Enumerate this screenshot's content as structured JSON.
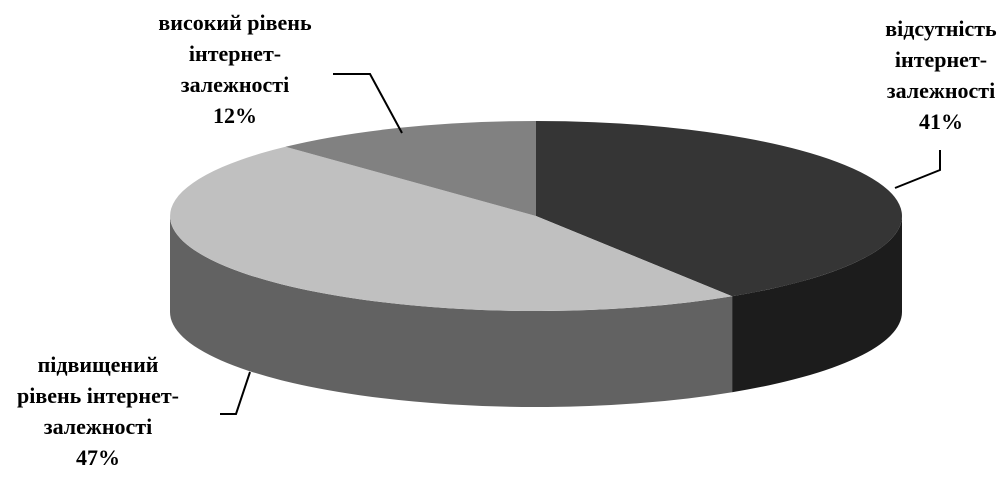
{
  "chart_data": {
    "type": "pie",
    "title": "",
    "three_d": true,
    "legend": "none",
    "slices": [
      {
        "key": "absent",
        "label_lines": [
          "відсутність",
          "інтернет-",
          "залежності"
        ],
        "percent_label": "41%",
        "value": 41,
        "top_color": "#353535",
        "side_color": "#1c1c1c"
      },
      {
        "key": "elevated",
        "label_lines": [
          "підвищений",
          "рівень інтернет-",
          "залежності"
        ],
        "percent_label": "47%",
        "value": 47,
        "top_color": "#c0c0c0",
        "side_color": "#626262"
      },
      {
        "key": "high",
        "label_lines": [
          "високий рівень",
          "інтернет-",
          "залежності"
        ],
        "percent_label": "12%",
        "value": 12,
        "top_color": "#818181",
        "side_color": "#4a4a4a"
      }
    ]
  }
}
